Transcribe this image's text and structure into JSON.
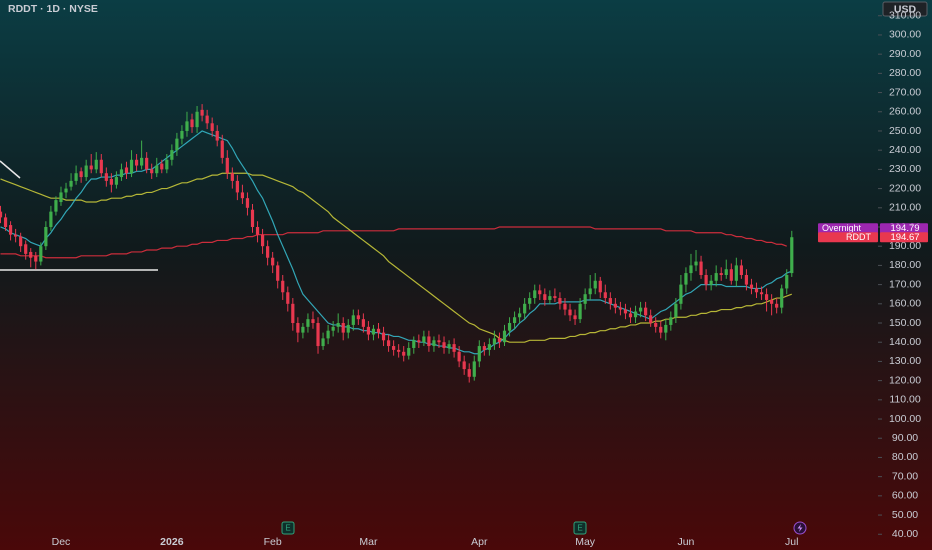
{
  "chart_data": {
    "type": "candlestick",
    "title": "RDDT · 1D · NYSE",
    "currency": "USD",
    "categories": [
      null,
      null,
      null,
      null,
      null,
      null,
      null,
      null,
      null,
      null,
      null,
      null,
      "Dec",
      null,
      null,
      null,
      null,
      null,
      null,
      null,
      null,
      null,
      null,
      null,
      null,
      null,
      null,
      null,
      null,
      null,
      null,
      null,
      null,
      null,
      "2026",
      null,
      null,
      null,
      null,
      null,
      null,
      null,
      null,
      null,
      null,
      null,
      null,
      null,
      null,
      null,
      null,
      null,
      null,
      null,
      "Feb",
      null,
      null,
      null,
      null,
      null,
      null,
      null,
      null,
      null,
      null,
      null,
      null,
      null,
      null,
      null,
      null,
      null,
      null,
      "Mar",
      null,
      null,
      null,
      null,
      null,
      null,
      null,
      null,
      null,
      null,
      null,
      null,
      null,
      null,
      null,
      null,
      null,
      null,
      null,
      null,
      null,
      "Apr",
      null,
      null,
      null,
      null,
      null,
      null,
      null,
      null,
      null,
      null,
      null,
      null,
      null,
      null,
      null,
      null,
      null,
      null,
      null,
      null,
      "May",
      null,
      null,
      null,
      null,
      null,
      null,
      null,
      null,
      null,
      null,
      null,
      null,
      null,
      null,
      null,
      null,
      null,
      null,
      null,
      "Jun",
      null,
      null,
      null,
      null,
      null,
      null,
      null,
      null,
      null,
      null,
      null,
      null,
      null,
      null,
      null,
      null,
      null,
      null,
      null,
      null,
      "Jul"
    ],
    "open": [
      208,
      205,
      201,
      196,
      195,
      191,
      187,
      185,
      182,
      190,
      200,
      208,
      213,
      218,
      221,
      224,
      229,
      226,
      232,
      230,
      235,
      228,
      225,
      222,
      226,
      231,
      228,
      235,
      232,
      236,
      230,
      228,
      233,
      230,
      235,
      240,
      246,
      250,
      256,
      252,
      261,
      258,
      254,
      250,
      245,
      236,
      228,
      224,
      218,
      215,
      209,
      200,
      196,
      190,
      184,
      180,
      172,
      166,
      160,
      150,
      145,
      148,
      152,
      150,
      138,
      142,
      146,
      148,
      150,
      145,
      149,
      154,
      152,
      148,
      144,
      147,
      145,
      141,
      138,
      136,
      135,
      133,
      137,
      141,
      140,
      143,
      138,
      141,
      140,
      137,
      139,
      135,
      130,
      126,
      122,
      130,
      138,
      136,
      139,
      142,
      140,
      146,
      150,
      153,
      155,
      160,
      163,
      167,
      165,
      162,
      164,
      163,
      160,
      157,
      154,
      152,
      160,
      165,
      168,
      172,
      166,
      163,
      160,
      158,
      157,
      155,
      153,
      156,
      158,
      154,
      150,
      148,
      145,
      149,
      153,
      160,
      170,
      176,
      180,
      182,
      175,
      170,
      172,
      176,
      175,
      178,
      172,
      180,
      175,
      170,
      168,
      166,
      165,
      162,
      160,
      158,
      168,
      176
    ],
    "high": [
      211,
      207,
      203,
      199,
      197,
      193,
      189,
      187,
      192,
      203,
      211,
      216,
      221,
      223,
      228,
      232,
      231,
      235,
      238,
      239,
      238,
      231,
      228,
      229,
      233,
      234,
      240,
      238,
      245,
      239,
      233,
      236,
      235,
      238,
      243,
      249,
      253,
      260,
      259,
      263,
      264,
      261,
      257,
      253,
      248,
      240,
      231,
      227,
      222,
      218,
      212,
      203,
      199,
      193,
      187,
      182,
      175,
      169,
      163,
      153,
      150,
      155,
      156,
      153,
      145,
      149,
      151,
      155,
      153,
      152,
      157,
      157,
      155,
      151,
      149,
      150,
      148,
      144,
      141,
      139,
      138,
      140,
      143,
      144,
      146,
      146,
      143,
      144,
      143,
      141,
      142,
      138,
      133,
      129,
      133,
      141,
      140,
      142,
      146,
      145,
      149,
      153,
      156,
      158,
      163,
      166,
      170,
      170,
      168,
      167,
      168,
      166,
      163,
      160,
      157,
      163,
      168,
      175,
      176,
      174,
      170,
      166,
      163,
      161,
      160,
      158,
      159,
      161,
      161,
      157,
      153,
      151,
      152,
      156,
      163,
      175,
      179,
      186,
      188,
      185,
      178,
      175,
      180,
      179,
      183,
      181,
      184,
      183,
      178,
      173,
      171,
      169,
      168,
      165,
      163,
      170,
      178,
      198
    ],
    "low": [
      202,
      198,
      193,
      192,
      187,
      183,
      179,
      178,
      180,
      188,
      198,
      206,
      211,
      215,
      219,
      222,
      223,
      224,
      228,
      228,
      226,
      221,
      218,
      220,
      224,
      225,
      226,
      229,
      230,
      228,
      225,
      226,
      228,
      228,
      232,
      237,
      243,
      247,
      249,
      249,
      255,
      251,
      247,
      242,
      233,
      225,
      220,
      214,
      212,
      206,
      197,
      192,
      186,
      180,
      176,
      168,
      162,
      156,
      146,
      140,
      142,
      145,
      147,
      134,
      136,
      139,
      143,
      145,
      141,
      142,
      146,
      149,
      145,
      141,
      141,
      142,
      138,
      135,
      133,
      132,
      130,
      131,
      134,
      137,
      138,
      135,
      135,
      137,
      134,
      134,
      132,
      127,
      123,
      119,
      120,
      127,
      133,
      133,
      136,
      137,
      138,
      143,
      147,
      150,
      152,
      157,
      160,
      162,
      159,
      160,
      161,
      157,
      154,
      151,
      149,
      150,
      157,
      162,
      165,
      163,
      160,
      157,
      155,
      154,
      152,
      150,
      150,
      153,
      151,
      148,
      145,
      142,
      141,
      146,
      150,
      157,
      166,
      172,
      177,
      173,
      167,
      167,
      169,
      172,
      173,
      170,
      169,
      173,
      167,
      165,
      163,
      162,
      156,
      154,
      155,
      155,
      165,
      174
    ],
    "close": [
      205,
      200,
      196,
      195,
      190,
      186,
      184,
      182,
      190,
      200,
      208,
      214,
      218,
      220,
      224,
      228,
      226,
      232,
      230,
      235,
      228,
      224,
      222,
      226,
      230,
      228,
      235,
      232,
      236,
      230,
      228,
      232,
      230,
      235,
      240,
      246,
      250,
      255,
      252,
      260,
      258,
      254,
      250,
      245,
      236,
      228,
      224,
      218,
      215,
      210,
      200,
      196,
      190,
      184,
      180,
      172,
      166,
      160,
      150,
      145,
      148,
      152,
      150,
      138,
      142,
      146,
      148,
      150,
      145,
      149,
      154,
      152,
      148,
      144,
      147,
      145,
      141,
      138,
      136,
      135,
      133,
      137,
      141,
      140,
      143,
      138,
      141,
      140,
      137,
      139,
      135,
      130,
      126,
      122,
      130,
      138,
      136,
      139,
      142,
      140,
      146,
      150,
      153,
      155,
      160,
      163,
      167,
      165,
      162,
      164,
      163,
      160,
      157,
      154,
      152,
      160,
      165,
      168,
      172,
      166,
      163,
      160,
      158,
      157,
      155,
      153,
      156,
      158,
      154,
      150,
      148,
      145,
      149,
      153,
      160,
      170,
      176,
      180,
      182,
      175,
      170,
      172,
      176,
      175,
      178,
      172,
      180,
      175,
      170,
      168,
      166,
      165,
      162,
      160,
      158,
      168,
      175,
      194.67
    ],
    "up_color": "#3fae4c",
    "down_color": "#e8384f",
    "overlays": [
      {
        "color": "#e0303f",
        "values": [
          186,
          186,
          186,
          186,
          185,
          185,
          185,
          185,
          185,
          184,
          184,
          184,
          184,
          184,
          184,
          184,
          185,
          185,
          185,
          185,
          185,
          185,
          186,
          186,
          186,
          186,
          187,
          187,
          187,
          188,
          188,
          188,
          189,
          189,
          189,
          190,
          190,
          190,
          191,
          191,
          192,
          192,
          192,
          193,
          193,
          193,
          194,
          194,
          194,
          195,
          195,
          196,
          196,
          196,
          196,
          196,
          196,
          197,
          197,
          197,
          197,
          197,
          197,
          197,
          198,
          198,
          198,
          198,
          198,
          198,
          198,
          198,
          198,
          198,
          198,
          198,
          198,
          198,
          198,
          199,
          199,
          199,
          199,
          199,
          199,
          199,
          199,
          199,
          199,
          199,
          199,
          199,
          199,
          199,
          199,
          199,
          199,
          199,
          199,
          200,
          200,
          200,
          200,
          200,
          200,
          200,
          200,
          200,
          200,
          200,
          200,
          200,
          200,
          200,
          200,
          200,
          200,
          200,
          199,
          199,
          199,
          199,
          199,
          199,
          199,
          199,
          199,
          199,
          199,
          199,
          199,
          199,
          198,
          198,
          198,
          198,
          198,
          198,
          197,
          197,
          197,
          197,
          197,
          197,
          196,
          196,
          195,
          195,
          194,
          194,
          193,
          193,
          192,
          192,
          191,
          191,
          190
        ]
      },
      {
        "color": "#c8c83a",
        "values": [
          225,
          224,
          223,
          222,
          221,
          220,
          219,
          218,
          217,
          216,
          215,
          215,
          215,
          214,
          214,
          214,
          214,
          213,
          213,
          213,
          214,
          214,
          215,
          215,
          215,
          216,
          216,
          217,
          217,
          218,
          218,
          219,
          220,
          220,
          221,
          222,
          223,
          223,
          224,
          225,
          225,
          226,
          227,
          227,
          228,
          228,
          228,
          228,
          228,
          228,
          227,
          227,
          227,
          226,
          225,
          224,
          223,
          222,
          221,
          219,
          218,
          216,
          214,
          212,
          210,
          208,
          205,
          203,
          201,
          199,
          197,
          195,
          193,
          191,
          189,
          187,
          185,
          182,
          180,
          178,
          176,
          174,
          172,
          170,
          168,
          166,
          164,
          162,
          160,
          158,
          156,
          154,
          152,
          150,
          149,
          147,
          146,
          145,
          144,
          142,
          141,
          140,
          140,
          140,
          140,
          141,
          141,
          141,
          141,
          142,
          142,
          142,
          142,
          143,
          143,
          144,
          144,
          145,
          145,
          146,
          146,
          147,
          147,
          148,
          148,
          149,
          149,
          150,
          150,
          150,
          151,
          151,
          152,
          152,
          153,
          153,
          153,
          154,
          154,
          155,
          155,
          156,
          156,
          157,
          157,
          157,
          158,
          158,
          159,
          159,
          160,
          160,
          161,
          162,
          163,
          163,
          164,
          165
        ]
      },
      {
        "color": "#35b6c8",
        "values": [
          200,
          199,
          197,
          196,
          195,
          194,
          192,
          191,
          190,
          194,
          197,
          201,
          204,
          208,
          211,
          215,
          218,
          222,
          225,
          225,
          226,
          226,
          226,
          227,
          227,
          228,
          228,
          229,
          229,
          230,
          230,
          232,
          234,
          236,
          238,
          240,
          242,
          244,
          246,
          248,
          250,
          249,
          248,
          247,
          246,
          245,
          241,
          236,
          232,
          228,
          224,
          219,
          215,
          209,
          203,
          196,
          190,
          184,
          178,
          171,
          165,
          162,
          159,
          156,
          153,
          150,
          149,
          149,
          148,
          148,
          147,
          147,
          146,
          146,
          145,
          145,
          144,
          144,
          143,
          143,
          142,
          141,
          141,
          140,
          140,
          139,
          139,
          138,
          138,
          137,
          137,
          136,
          135,
          135,
          134,
          134,
          136,
          137,
          139,
          140,
          142,
          145,
          147,
          150,
          152,
          155,
          157,
          160,
          160,
          160,
          160,
          161,
          161,
          161,
          161,
          161,
          162,
          162,
          162,
          162,
          161,
          160,
          159,
          158,
          157,
          156,
          155,
          154,
          153,
          152,
          154,
          156,
          157,
          159,
          161,
          163,
          165,
          166,
          168,
          170,
          170,
          170,
          170,
          170,
          169,
          169,
          169,
          169,
          169,
          168,
          168,
          168,
          170,
          171,
          173,
          174,
          176,
          177
        ]
      }
    ],
    "overnight": {
      "label": "Overnight",
      "value": 194.79
    },
    "last_label": "RDDT",
    "events": [
      "E",
      "E"
    ],
    "ylim": [
      31.8,
      318.2
    ],
    "yticks": [
      {
        "value": 40,
        "label": "40.00"
      },
      {
        "value": 50,
        "label": "50.00"
      },
      {
        "value": 60,
        "label": "60.00"
      },
      {
        "value": 70,
        "label": "70.00"
      },
      {
        "value": 80,
        "label": "80.00"
      },
      {
        "value": 90,
        "label": "90.00"
      },
      {
        "value": 100,
        "label": "100.00"
      },
      {
        "value": 110,
        "label": "110.00"
      },
      {
        "value": 120,
        "label": "120.00"
      },
      {
        "value": 130,
        "label": "130.00"
      },
      {
        "value": 140,
        "label": "140.00"
      },
      {
        "value": 150,
        "label": "150.00"
      },
      {
        "value": 160,
        "label": "160.00"
      },
      {
        "value": 170,
        "label": "170.00"
      },
      {
        "value": 180,
        "label": "180.00"
      },
      {
        "value": 190,
        "label": "190.00"
      },
      {
        "value": 200,
        "label": "200.00"
      },
      {
        "value": 210,
        "label": "210.00"
      },
      {
        "value": 220,
        "label": "220.00"
      },
      {
        "value": 230,
        "label": "230.00"
      },
      {
        "value": 240,
        "label": "240.00"
      },
      {
        "value": 250,
        "label": "250.00"
      },
      {
        "value": 260,
        "label": "260.00"
      },
      {
        "value": 270,
        "label": "270.00"
      },
      {
        "value": 280,
        "label": "280.00"
      },
      {
        "value": 290,
        "label": "290.00"
      },
      {
        "value": 300,
        "label": "300.00"
      },
      {
        "value": 310,
        "label": "310.00"
      }
    ],
    "grid": false
  }
}
